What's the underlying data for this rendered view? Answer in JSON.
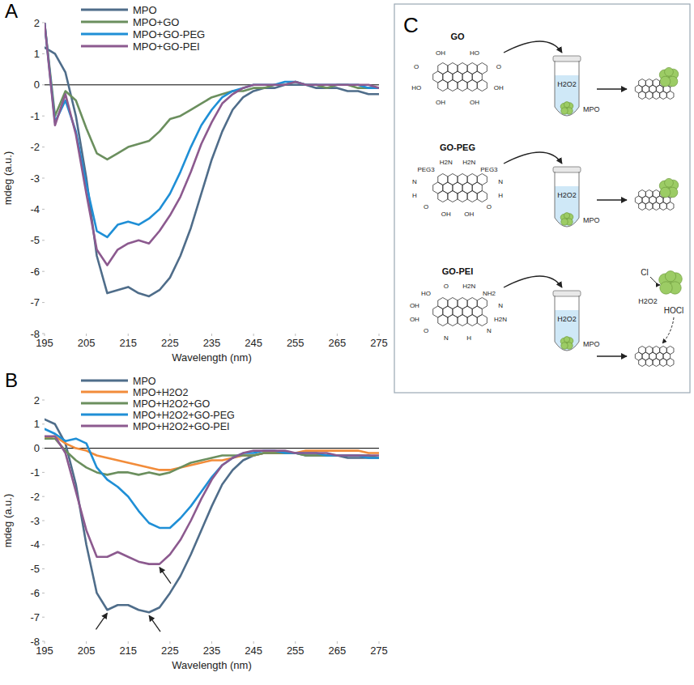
{
  "chart_data": [
    {
      "type": "line",
      "panel_label": "A",
      "x_label": "Wavelength (nm)",
      "y_label": "mdeg (a.u.)",
      "xlim": [
        195,
        275
      ],
      "xticks": [
        195,
        205,
        215,
        225,
        235,
        245,
        255,
        265,
        275
      ],
      "ylim": [
        -8,
        2
      ],
      "yticks": [
        -8,
        -7,
        -6,
        -5,
        -4,
        -3,
        -2,
        -1,
        0,
        1,
        2
      ],
      "grid": false,
      "legend": "top-left",
      "x": [
        195,
        197.5,
        200,
        202.5,
        205,
        207.5,
        210,
        212.5,
        215,
        217.5,
        220,
        222.5,
        225,
        227.5,
        230,
        232.5,
        235,
        237.5,
        240,
        242.5,
        245,
        247.5,
        250,
        252.5,
        255,
        257.5,
        260,
        262.5,
        265,
        267.5,
        270,
        272.5,
        275
      ],
      "series": [
        {
          "name": "MPO",
          "color": "#4f6d8a",
          "values": [
            1.2,
            1.0,
            0.4,
            -1.0,
            -3.0,
            -5.5,
            -6.7,
            -6.6,
            -6.5,
            -6.7,
            -6.8,
            -6.6,
            -6.2,
            -5.5,
            -4.6,
            -3.5,
            -2.4,
            -1.5,
            -0.8,
            -0.4,
            -0.2,
            -0.1,
            -0.1,
            0,
            0,
            0,
            -0.1,
            -0.1,
            -0.1,
            -0.2,
            -0.2,
            -0.3,
            -0.3
          ]
        },
        {
          "name": "MPO+GO",
          "color": "#6b8f5e",
          "values": [
            2.0,
            -1.0,
            -0.2,
            -0.5,
            -1.4,
            -2.2,
            -2.4,
            -2.2,
            -2.0,
            -1.9,
            -1.8,
            -1.5,
            -1.1,
            -1.0,
            -0.8,
            -0.6,
            -0.4,
            -0.3,
            -0.2,
            -0.2,
            -0.1,
            -0.1,
            0,
            0,
            0.1,
            0,
            0,
            -0.1,
            0,
            0,
            -0.1,
            -0.1,
            -0.1
          ]
        },
        {
          "name": "MPO+GO-PEG",
          "color": "#1f8fd6",
          "values": [
            2.0,
            -1.2,
            -0.5,
            -1.5,
            -3.2,
            -4.7,
            -4.9,
            -4.5,
            -4.4,
            -4.5,
            -4.3,
            -4.0,
            -3.5,
            -2.8,
            -2.0,
            -1.3,
            -0.8,
            -0.4,
            -0.2,
            -0.1,
            0,
            0,
            0,
            0.1,
            0.1,
            0,
            0,
            0,
            0,
            0,
            0,
            -0.1,
            -0.1
          ]
        },
        {
          "name": "MPO+GO-PEI",
          "color": "#8c5a8f",
          "values": [
            2.0,
            -1.3,
            -0.3,
            -1.6,
            -3.5,
            -5.3,
            -5.8,
            -5.3,
            -5.1,
            -5.0,
            -5.1,
            -4.7,
            -4.2,
            -3.6,
            -2.8,
            -1.9,
            -1.2,
            -0.6,
            -0.3,
            -0.1,
            0,
            0,
            0,
            0,
            0.1,
            0,
            0,
            0,
            0,
            0,
            0,
            0,
            -0.1
          ]
        }
      ]
    },
    {
      "type": "line",
      "panel_label": "B",
      "x_label": "Wavelength (nm)",
      "y_label": "mdeg (a.u.)",
      "xlim": [
        195,
        275
      ],
      "xticks": [
        195,
        205,
        215,
        225,
        235,
        245,
        255,
        265,
        275
      ],
      "ylim": [
        -8,
        2
      ],
      "yticks": [
        -8,
        -7,
        -6,
        -5,
        -4,
        -3,
        -2,
        -1,
        0,
        1,
        2
      ],
      "grid": false,
      "legend": "top-left",
      "x": [
        195,
        197.5,
        200,
        202.5,
        205,
        207.5,
        210,
        212.5,
        215,
        217.5,
        220,
        222.5,
        225,
        227.5,
        230,
        232.5,
        235,
        237.5,
        240,
        242.5,
        245,
        247.5,
        250,
        252.5,
        255,
        257.5,
        260,
        262.5,
        265,
        267.5,
        270,
        272.5,
        275
      ],
      "series": [
        {
          "name": "MPO",
          "color": "#4f6d8a",
          "values": [
            1.2,
            1.0,
            0.2,
            -1.5,
            -4.0,
            -6.0,
            -6.7,
            -6.5,
            -6.5,
            -6.7,
            -6.8,
            -6.6,
            -6.0,
            -5.3,
            -4.4,
            -3.4,
            -2.4,
            -1.5,
            -0.9,
            -0.5,
            -0.3,
            -0.2,
            -0.2,
            -0.2,
            -0.2,
            -0.3,
            -0.3,
            -0.3,
            -0.3,
            -0.4,
            -0.4,
            -0.4,
            -0.4
          ]
        },
        {
          "name": "MPO+H2O2",
          "color": "#f28c3a",
          "values": [
            0.4,
            0.5,
            0.2,
            0.0,
            -0.1,
            -0.3,
            -0.4,
            -0.5,
            -0.6,
            -0.7,
            -0.8,
            -0.9,
            -0.9,
            -0.8,
            -0.7,
            -0.6,
            -0.5,
            -0.5,
            -0.4,
            -0.3,
            -0.3,
            -0.2,
            -0.2,
            -0.2,
            -0.2,
            -0.1,
            -0.1,
            -0.1,
            -0.1,
            -0.1,
            -0.1,
            -0.2,
            -0.2
          ]
        },
        {
          "name": "MPO+H2O2+GO",
          "color": "#6b8f5e",
          "values": [
            0.4,
            0.4,
            -0.1,
            -0.5,
            -0.8,
            -1.0,
            -1.1,
            -1.0,
            -1.0,
            -1.1,
            -1.0,
            -1.1,
            -1.0,
            -0.8,
            -0.6,
            -0.5,
            -0.4,
            -0.3,
            -0.3,
            -0.3,
            -0.3,
            -0.2,
            -0.2,
            -0.2,
            -0.2,
            -0.3,
            -0.3,
            -0.3,
            -0.3,
            -0.3,
            -0.3,
            -0.3,
            -0.4
          ]
        },
        {
          "name": "MPO+H2O2+GO-PEG",
          "color": "#1f8fd6",
          "values": [
            0.8,
            0.6,
            0.3,
            0.4,
            0.2,
            -0.8,
            -1.3,
            -1.6,
            -2.0,
            -2.6,
            -3.1,
            -3.3,
            -3.3,
            -2.9,
            -2.4,
            -1.8,
            -1.2,
            -0.7,
            -0.4,
            -0.2,
            -0.2,
            -0.1,
            -0.1,
            -0.2,
            -0.2,
            -0.2,
            -0.2,
            -0.3,
            -0.3,
            -0.3,
            -0.3,
            -0.4,
            -0.4
          ]
        },
        {
          "name": "MPO+H2O2+GO-PEI",
          "color": "#8c5a8f",
          "values": [
            0.5,
            0.5,
            -0.2,
            -1.8,
            -3.4,
            -4.5,
            -4.5,
            -4.3,
            -4.5,
            -4.7,
            -4.8,
            -4.8,
            -4.4,
            -3.8,
            -3.0,
            -2.1,
            -1.3,
            -0.7,
            -0.4,
            -0.2,
            -0.1,
            -0.1,
            -0.1,
            -0.1,
            -0.2,
            -0.2,
            -0.2,
            -0.2,
            -0.3,
            -0.3,
            -0.3,
            -0.3,
            -0.3
          ]
        }
      ],
      "arrows": [
        {
          "x": 210,
          "y": -6.7
        },
        {
          "x": 220,
          "y": -6.8
        },
        {
          "x": 222.5,
          "y": -4.8
        }
      ]
    }
  ],
  "diagram": {
    "panel_label": "C",
    "rows": [
      {
        "label": "GO",
        "groups": [
          "HO",
          "O",
          "OH",
          "OH",
          "OH",
          "HO",
          "O",
          "OH"
        ],
        "tube_label": "H2O2",
        "enzyme_label": "MPO"
      },
      {
        "label": "GO-PEG",
        "groups": [
          "H2N",
          "PEG3",
          "N",
          "H",
          "O",
          "OH",
          "OH",
          "O",
          "H",
          "N",
          "PEG3",
          "H2N"
        ],
        "tube_label": "H2O2",
        "enzyme_label": "MPO"
      },
      {
        "label": "GO-PEI",
        "groups": [
          "H2N",
          "NH2",
          "N",
          "H2N",
          "N",
          "H",
          "N",
          "O",
          "OH",
          "OH",
          "HO",
          "O"
        ],
        "tube_label": "H2O2",
        "enzyme_label": "MPO"
      }
    ],
    "reaction": {
      "substrate": "Cl",
      "oxidant": "H2O2",
      "product": "HOCl"
    }
  }
}
